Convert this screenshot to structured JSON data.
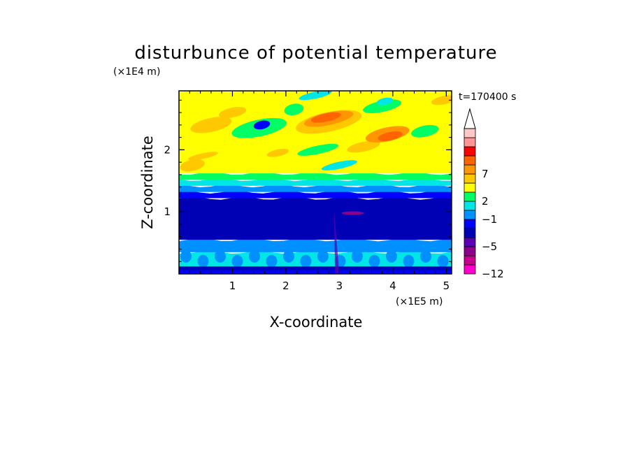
{
  "chart_data": {
    "type": "heatmap",
    "title": "disturbunce of potential temperature",
    "xlabel": "X-coordinate",
    "ylabel": "Z-coordinate",
    "x_scale_label": "(×1E5 m)",
    "y_scale_label": "(×1E4 m)",
    "time_label": "t=170400 s",
    "xlim": [
      0,
      5.1
    ],
    "ylim": [
      0,
      2.95
    ],
    "x_ticks": [
      {
        "value": 1,
        "label": "1"
      },
      {
        "value": 2,
        "label": "2"
      },
      {
        "value": 3,
        "label": "3"
      },
      {
        "value": 4,
        "label": "4"
      },
      {
        "value": 5,
        "label": "5"
      }
    ],
    "y_ticks": [
      {
        "value": 1,
        "label": "1"
      },
      {
        "value": 2,
        "label": "2"
      }
    ],
    "colorbar": {
      "levels": [
        {
          "label": "−12",
          "color": "#ff00cc"
        },
        {
          "label": "",
          "color": "#c8008c"
        },
        {
          "label": "",
          "color": "#8c008c"
        },
        {
          "label": "−5",
          "color": "#5a00b4"
        },
        {
          "label": "",
          "color": "#0000b4"
        },
        {
          "label": "",
          "color": "#0000ff"
        },
        {
          "label": "−1",
          "color": "#0090ff"
        },
        {
          "label": "",
          "color": "#00e6e6"
        },
        {
          "label": "2",
          "color": "#00ff64"
        },
        {
          "label": "",
          "color": "#ffff00"
        },
        {
          "label": "",
          "color": "#ffc800"
        },
        {
          "label": "7",
          "color": "#ff9600"
        },
        {
          "label": "",
          "color": "#ff6400"
        },
        {
          "label": "",
          "color": "#ff0000"
        },
        {
          "label": "",
          "color": "#ff9696"
        },
        {
          "label": "",
          "color": "#ffc8c8"
        }
      ],
      "extend_max": "#ffffff"
    },
    "field_layers": [
      {
        "z_range": [
          0,
          0.12
        ],
        "color": "#0000ff",
        "note": "surface layer"
      },
      {
        "z_range": [
          0.12,
          0.35
        ],
        "color": "#00e6e6",
        "note": "lower turbulent layer with blue cells"
      },
      {
        "z_range": [
          0.35,
          0.55
        ],
        "color": "#0090ff"
      },
      {
        "z_range": [
          0.55,
          1.22
        ],
        "color": "#0000b4",
        "note": "stable deep layer"
      },
      {
        "z_range": [
          1.22,
          1.32
        ],
        "color": "#0000ff"
      },
      {
        "z_range": [
          1.32,
          1.42
        ],
        "color": "#0090ff"
      },
      {
        "z_range": [
          1.42,
          1.52
        ],
        "color": "#00e6e6"
      },
      {
        "z_range": [
          1.52,
          1.62
        ],
        "color": "#00ff64"
      },
      {
        "z_range": [
          1.62,
          2.95
        ],
        "color": "#ffff00",
        "note": "upper layer with orange and green wave patches"
      }
    ]
  }
}
